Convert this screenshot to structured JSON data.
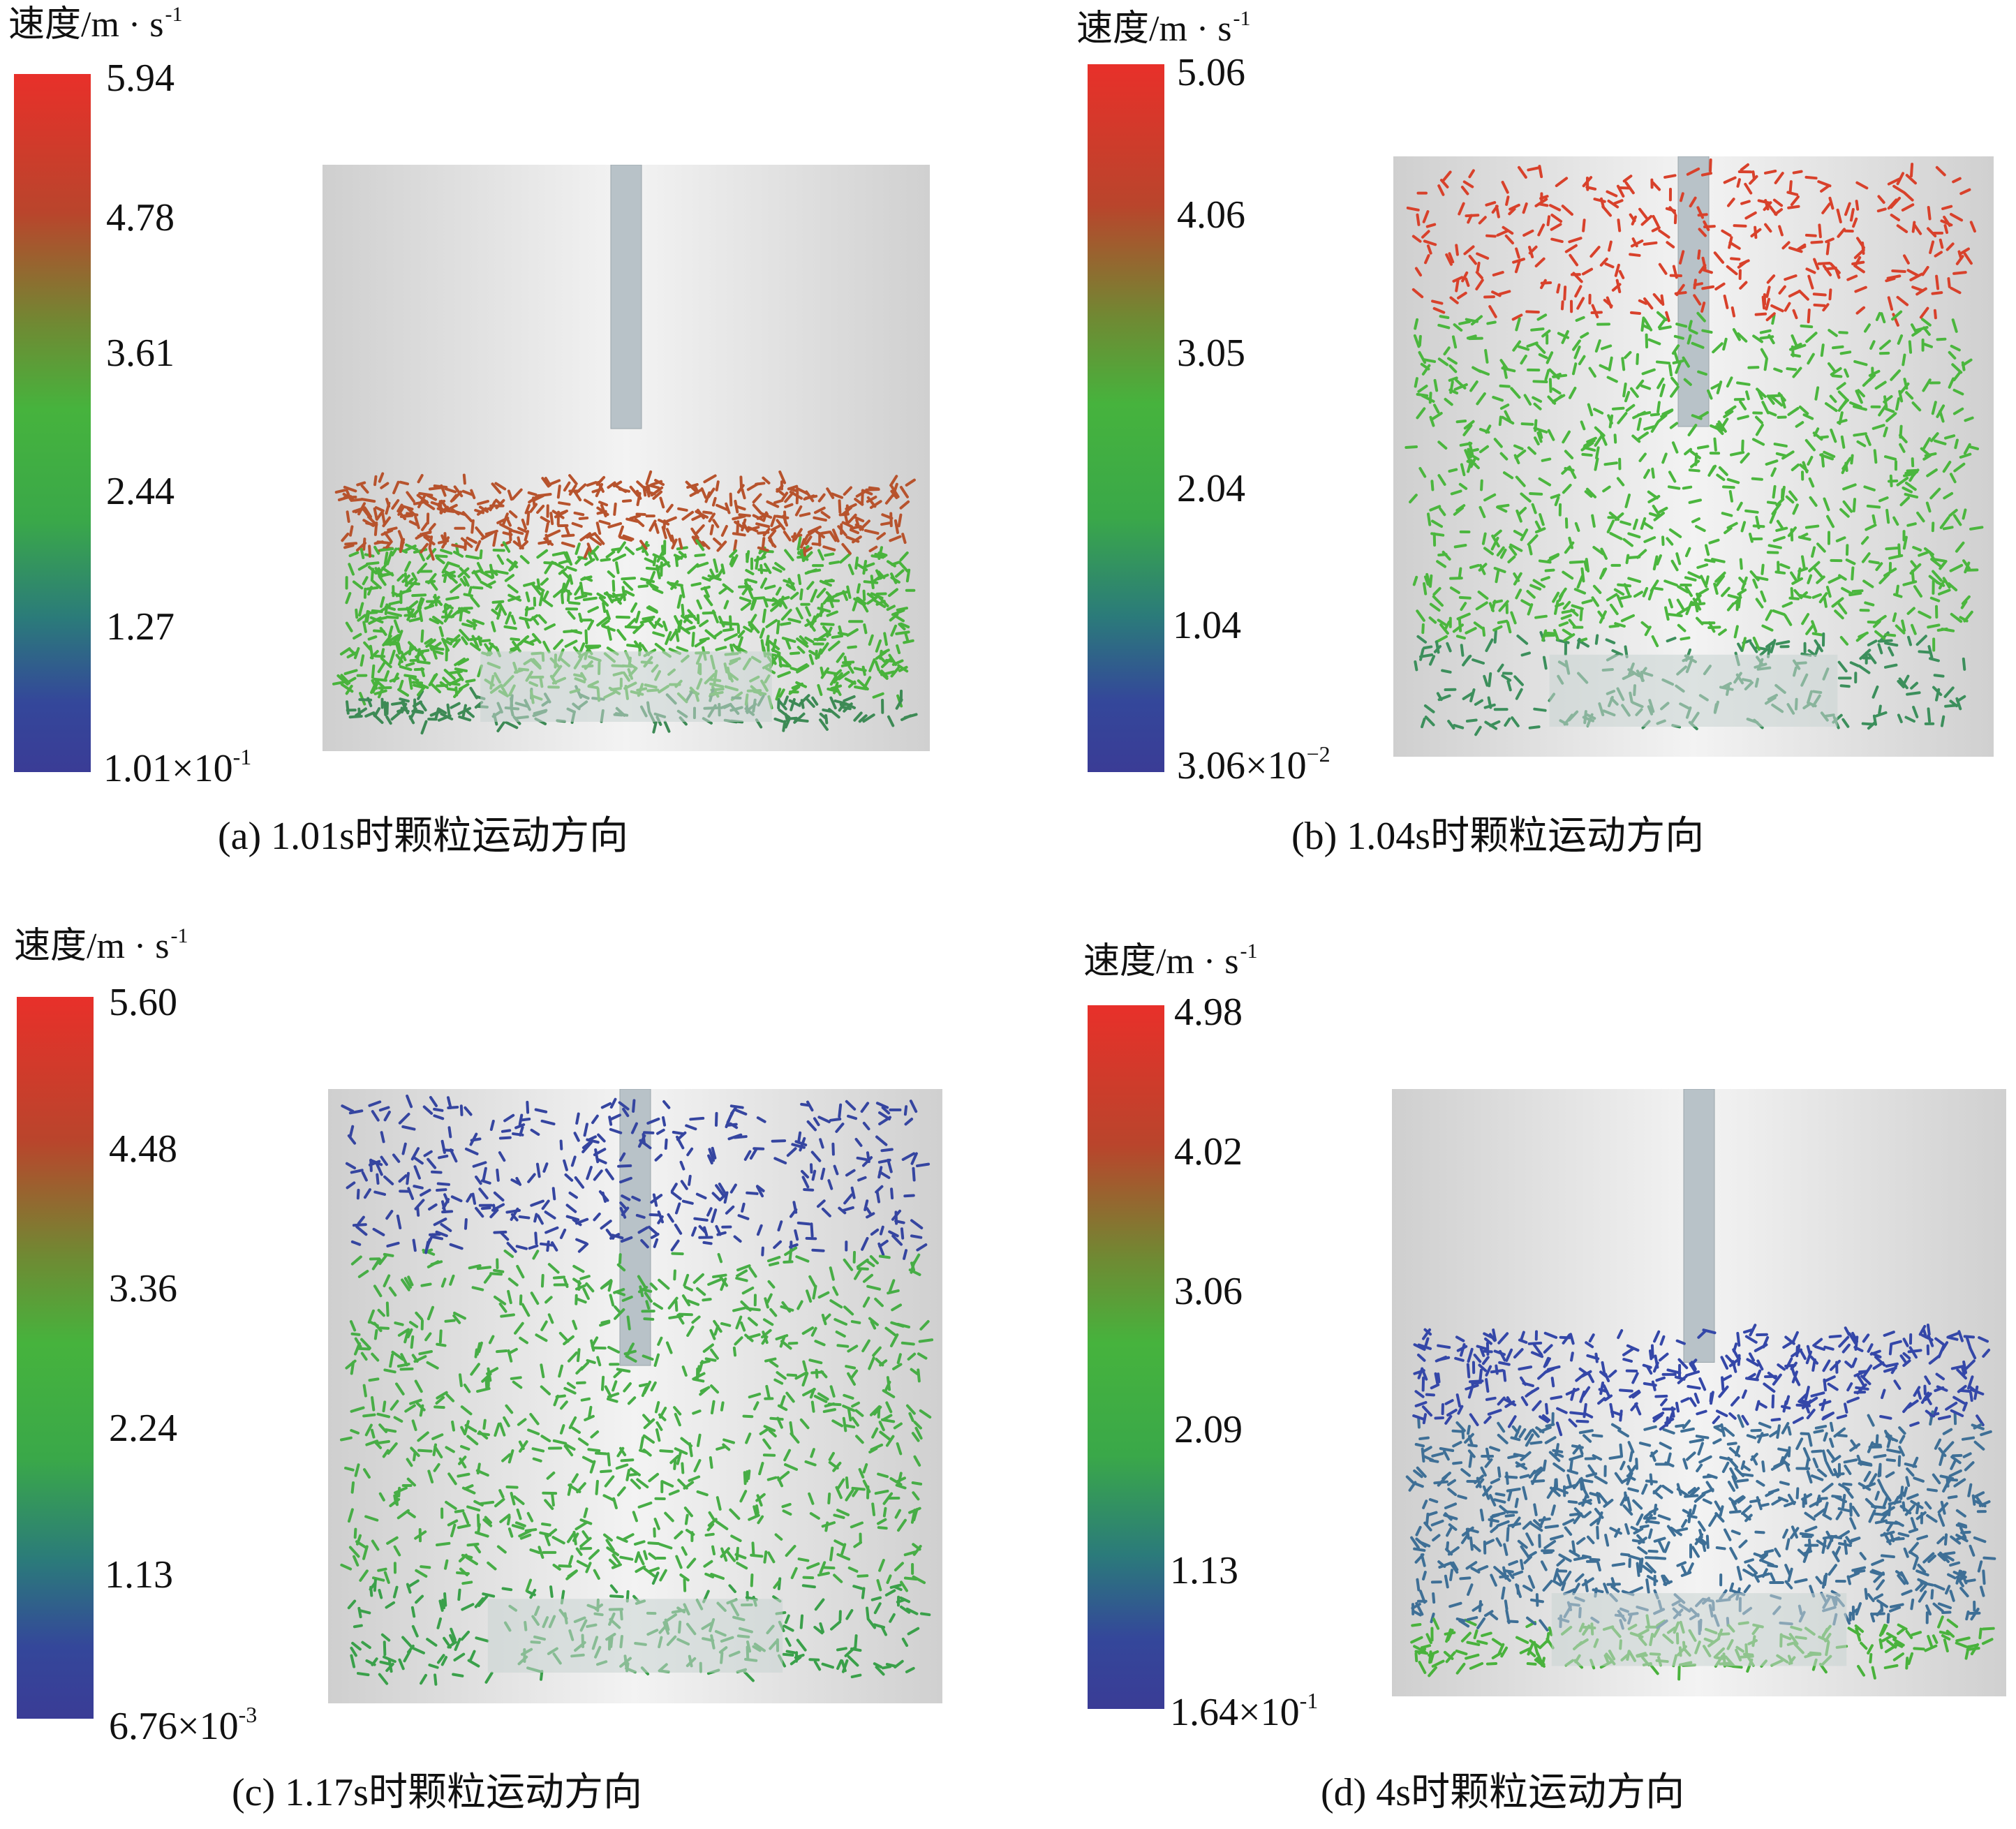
{
  "panels": [
    {
      "id": "a",
      "unit_label": "速度/m · s",
      "unit_exponent": "-1",
      "ticks": [
        "5.94",
        "4.78",
        "3.61",
        "2.44",
        "1.27",
        "1.01×10"
      ],
      "min_exponent": "-1",
      "caption": "(a) 1.01s时颗粒运动方向",
      "particle_fill": {
        "top": 0.54,
        "color_top": "#b7532d",
        "color_mid": "#49b33c",
        "color_bottom": "#3d8a55"
      }
    },
    {
      "id": "b",
      "unit_label": "速度/m · s",
      "unit_exponent": "-1",
      "ticks": [
        "5.06",
        "4.06",
        "3.05",
        "2.04",
        "1.04",
        "3.06×10"
      ],
      "min_exponent": "−2",
      "caption": "(b) 1.04s时颗粒运动方向",
      "particle_fill": {
        "top": 0.0,
        "color_top": "#d8412b",
        "color_mid": "#4bb63e",
        "color_bottom": "#3c8f5c"
      }
    },
    {
      "id": "c",
      "unit_label": "速度/m · s",
      "unit_exponent": "-1",
      "ticks": [
        "5.60",
        "4.48",
        "3.36",
        "2.24",
        "1.13",
        "6.76×10"
      ],
      "min_exponent": "-3",
      "caption": "(c) 1.17s时颗粒运动方向",
      "particle_fill": {
        "top": 0.0,
        "color_top": "#3545a0",
        "color_mid": "#47ad46",
        "color_bottom": "#3aa04a"
      }
    },
    {
      "id": "d",
      "unit_label": "速度/m · s",
      "unit_exponent": "-1",
      "ticks": [
        "4.98",
        "4.02",
        "3.06",
        "2.09",
        "1.13",
        "1.64×10"
      ],
      "min_exponent": "-1",
      "caption": "(d) 4s时颗粒运动方向",
      "particle_fill": {
        "top": 0.4,
        "color_top": "#3447a8",
        "color_mid": "#3e6f96",
        "color_bottom": "#49b23c"
      }
    }
  ]
}
